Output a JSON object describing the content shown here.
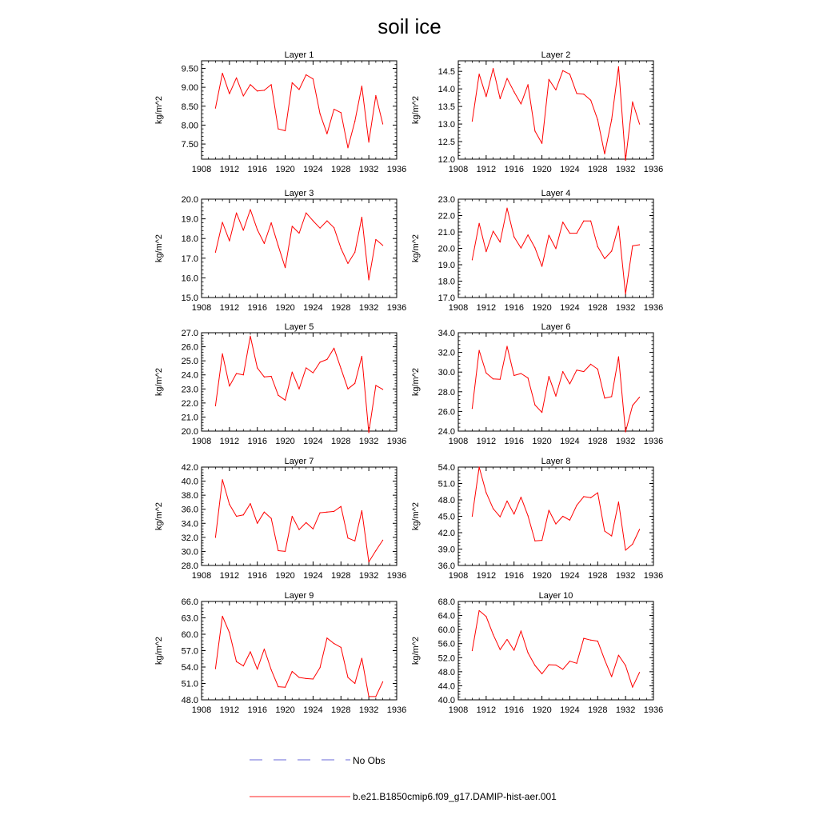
{
  "title": "soil ice",
  "legend": {
    "entries": [
      {
        "label": "No Obs",
        "color": "#6a6ad8",
        "dash": "dashed"
      },
      {
        "label": "b.e21.B1850cmip6.f09_g17.DAMIP-hist-aer.001",
        "color": "#ff2020",
        "dash": "solid"
      }
    ]
  },
  "line_color": "#ff0000",
  "chart_data": [
    {
      "type": "line",
      "title": "Layer 1",
      "ylabel": "kg/m^2",
      "xlim": [
        1908,
        1936
      ],
      "ylim": [
        7.1,
        9.7
      ],
      "xticks": [
        1908,
        1912,
        1916,
        1920,
        1924,
        1928,
        1932,
        1936
      ],
      "yticks": [
        "7.50",
        "8.00",
        "8.50",
        "9.00",
        "9.50"
      ],
      "x": [
        1910,
        1911,
        1912,
        1913,
        1914,
        1915,
        1916,
        1917,
        1918,
        1919,
        1920,
        1921,
        1922,
        1923,
        1924,
        1925,
        1926,
        1927,
        1928,
        1929,
        1930,
        1931,
        1932,
        1933,
        1934
      ],
      "values": [
        8.45,
        9.37,
        8.83,
        9.25,
        8.77,
        9.07,
        8.9,
        8.92,
        9.07,
        7.9,
        7.85,
        9.12,
        8.94,
        9.33,
        9.22,
        8.3,
        7.77,
        8.42,
        8.33,
        7.4,
        8.1,
        9.03,
        7.55,
        8.78,
        8.03
      ]
    },
    {
      "type": "line",
      "title": "Layer 2",
      "ylabel": "kg/m^2",
      "xlim": [
        1908,
        1936
      ],
      "ylim": [
        12.0,
        14.8
      ],
      "xticks": [
        1908,
        1912,
        1916,
        1920,
        1924,
        1928,
        1932,
        1936
      ],
      "yticks": [
        "12.0",
        "12.5",
        "13.0",
        "13.5",
        "14.0",
        "14.5"
      ],
      "x": [
        1910,
        1911,
        1912,
        1913,
        1914,
        1915,
        1916,
        1917,
        1918,
        1919,
        1920,
        1921,
        1922,
        1923,
        1924,
        1925,
        1926,
        1927,
        1928,
        1929,
        1930,
        1931,
        1932,
        1933,
        1934
      ],
      "values": [
        13.08,
        14.42,
        13.78,
        14.58,
        13.72,
        14.3,
        13.92,
        13.57,
        14.12,
        12.8,
        12.45,
        14.27,
        13.97,
        14.52,
        14.42,
        13.87,
        13.85,
        13.68,
        13.12,
        12.15,
        13.12,
        14.63,
        11.97,
        13.63,
        13.0
      ]
    },
    {
      "type": "line",
      "title": "Layer 3",
      "ylabel": "kg/m^2",
      "xlim": [
        1908,
        1936
      ],
      "ylim": [
        15.0,
        20.0
      ],
      "xticks": [
        1908,
        1912,
        1916,
        1920,
        1924,
        1928,
        1932,
        1936
      ],
      "yticks": [
        "15.0",
        "16.0",
        "17.0",
        "18.0",
        "19.0",
        "20.0"
      ],
      "x": [
        1910,
        1911,
        1912,
        1913,
        1914,
        1915,
        1916,
        1917,
        1918,
        1919,
        1920,
        1921,
        1922,
        1923,
        1924,
        1925,
        1926,
        1927,
        1928,
        1929,
        1930,
        1931,
        1932,
        1933,
        1934
      ],
      "values": [
        17.3,
        18.82,
        17.88,
        19.3,
        18.42,
        19.47,
        18.45,
        17.75,
        18.8,
        17.63,
        16.52,
        18.62,
        18.27,
        19.3,
        18.9,
        18.53,
        18.9,
        18.55,
        17.5,
        16.73,
        17.3,
        19.08,
        15.9,
        17.95,
        17.65
      ]
    },
    {
      "type": "line",
      "title": "Layer 4",
      "ylabel": "kg/m^2",
      "xlim": [
        1908,
        1936
      ],
      "ylim": [
        17.0,
        23.0
      ],
      "xticks": [
        1908,
        1912,
        1916,
        1920,
        1924,
        1928,
        1932,
        1936
      ],
      "yticks": [
        "17.0",
        "18.0",
        "19.0",
        "20.0",
        "21.0",
        "22.0",
        "23.0"
      ],
      "x": [
        1910,
        1911,
        1912,
        1913,
        1914,
        1915,
        1916,
        1917,
        1918,
        1919,
        1920,
        1921,
        1922,
        1923,
        1924,
        1925,
        1926,
        1927,
        1928,
        1929,
        1930,
        1931,
        1932,
        1933,
        1934
      ],
      "values": [
        19.3,
        21.52,
        19.8,
        21.05,
        20.38,
        22.45,
        20.7,
        20.02,
        20.82,
        20.03,
        18.9,
        20.8,
        19.98,
        21.6,
        20.92,
        20.92,
        21.67,
        21.67,
        20.1,
        19.37,
        19.83,
        21.35,
        17.22,
        20.15,
        20.22
      ]
    },
    {
      "type": "line",
      "title": "Layer 5",
      "ylabel": "kg/m^2",
      "xlim": [
        1908,
        1936
      ],
      "ylim": [
        20.0,
        27.0
      ],
      "xticks": [
        1908,
        1912,
        1916,
        1920,
        1924,
        1928,
        1932,
        1936
      ],
      "yticks": [
        "20.0",
        "21.0",
        "22.0",
        "23.0",
        "24.0",
        "25.0",
        "26.0",
        "27.0"
      ],
      "x": [
        1910,
        1911,
        1912,
        1913,
        1914,
        1915,
        1916,
        1917,
        1918,
        1919,
        1920,
        1921,
        1922,
        1923,
        1924,
        1925,
        1926,
        1927,
        1928,
        1929,
        1930,
        1931,
        1932,
        1933,
        1934
      ],
      "values": [
        21.8,
        25.5,
        23.2,
        24.1,
        24.0,
        26.75,
        24.5,
        23.85,
        23.9,
        22.55,
        22.2,
        24.2,
        23.0,
        24.5,
        24.15,
        24.9,
        25.1,
        25.9,
        24.45,
        23.0,
        23.4,
        25.32,
        19.9,
        23.25,
        22.97
      ]
    },
    {
      "type": "line",
      "title": "Layer 6",
      "ylabel": "kg/m^2",
      "xlim": [
        1908,
        1936
      ],
      "ylim": [
        24.0,
        34.0
      ],
      "xticks": [
        1908,
        1912,
        1916,
        1920,
        1924,
        1928,
        1932,
        1936
      ],
      "yticks": [
        "24.0",
        "26.0",
        "28.0",
        "30.0",
        "32.0",
        "34.0"
      ],
      "x": [
        1910,
        1911,
        1912,
        1913,
        1914,
        1915,
        1916,
        1917,
        1918,
        1919,
        1920,
        1921,
        1922,
        1923,
        1924,
        1925,
        1926,
        1927,
        1928,
        1929,
        1930,
        1931,
        1932,
        1933,
        1934
      ],
      "values": [
        26.3,
        32.2,
        29.9,
        29.3,
        29.27,
        32.62,
        29.65,
        29.85,
        29.4,
        26.65,
        25.9,
        29.55,
        27.55,
        30.05,
        28.8,
        30.2,
        30.05,
        30.8,
        30.3,
        27.35,
        27.5,
        31.55,
        23.92,
        26.6,
        27.45
      ]
    },
    {
      "type": "line",
      "title": "Layer 7",
      "ylabel": "kg/m^2",
      "xlim": [
        1908,
        1936
      ],
      "ylim": [
        28.0,
        42.0
      ],
      "xticks": [
        1908,
        1912,
        1916,
        1920,
        1924,
        1928,
        1932,
        1936
      ],
      "yticks": [
        "28.0",
        "30.0",
        "32.0",
        "34.0",
        "36.0",
        "38.0",
        "40.0",
        "42.0"
      ],
      "x": [
        1910,
        1911,
        1912,
        1913,
        1914,
        1915,
        1916,
        1917,
        1918,
        1919,
        1920,
        1921,
        1922,
        1923,
        1924,
        1925,
        1926,
        1927,
        1928,
        1929,
        1930,
        1931,
        1932,
        1933,
        1934
      ],
      "values": [
        32.0,
        40.2,
        36.7,
        35.0,
        35.2,
        36.8,
        34.0,
        35.6,
        34.7,
        30.1,
        30.0,
        35.0,
        33.1,
        34.1,
        33.2,
        35.5,
        35.6,
        35.7,
        36.4,
        31.9,
        31.5,
        35.8,
        28.5,
        30.1,
        31.6
      ]
    },
    {
      "type": "line",
      "title": "Layer 8",
      "ylabel": "kg/m^2",
      "xlim": [
        1908,
        1936
      ],
      "ylim": [
        36.0,
        54.0
      ],
      "xticks": [
        1908,
        1912,
        1916,
        1920,
        1924,
        1928,
        1932,
        1936
      ],
      "yticks": [
        "36.0",
        "39.0",
        "42.0",
        "45.0",
        "48.0",
        "51.0",
        "54.0"
      ],
      "x": [
        1910,
        1911,
        1912,
        1913,
        1914,
        1915,
        1916,
        1917,
        1918,
        1919,
        1920,
        1921,
        1922,
        1923,
        1924,
        1925,
        1926,
        1927,
        1928,
        1929,
        1930,
        1931,
        1932,
        1933,
        1934
      ],
      "values": [
        45.0,
        54.0,
        49.3,
        46.4,
        44.9,
        47.8,
        45.4,
        48.5,
        45.1,
        40.5,
        40.6,
        46.1,
        43.6,
        45.0,
        44.3,
        47.0,
        48.6,
        48.4,
        49.3,
        42.3,
        41.4,
        47.6,
        38.8,
        39.9,
        42.6
      ]
    },
    {
      "type": "line",
      "title": "Layer 9",
      "ylabel": "kg/m^2",
      "xlim": [
        1908,
        1936
      ],
      "ylim": [
        48.0,
        66.0
      ],
      "xticks": [
        1908,
        1912,
        1916,
        1920,
        1924,
        1928,
        1932,
        1936
      ],
      "yticks": [
        "48.0",
        "51.0",
        "54.0",
        "57.0",
        "60.0",
        "63.0",
        "66.0"
      ],
      "x": [
        1910,
        1911,
        1912,
        1913,
        1914,
        1915,
        1916,
        1917,
        1918,
        1919,
        1920,
        1921,
        1922,
        1923,
        1924,
        1925,
        1926,
        1927,
        1928,
        1929,
        1930,
        1931,
        1932,
        1933,
        1934
      ],
      "values": [
        53.7,
        63.3,
        60.3,
        55.0,
        54.2,
        56.8,
        53.6,
        57.3,
        53.5,
        50.4,
        50.3,
        53.2,
        52.1,
        51.9,
        51.8,
        53.9,
        59.3,
        58.3,
        57.6,
        52.1,
        51.0,
        55.6,
        48.6,
        48.6,
        51.3
      ]
    },
    {
      "type": "line",
      "title": "Layer 10",
      "ylabel": "kg/m^2",
      "xlim": [
        1908,
        1936
      ],
      "ylim": [
        40.0,
        68.0
      ],
      "xticks": [
        1908,
        1912,
        1916,
        1920,
        1924,
        1928,
        1932,
        1936
      ],
      "yticks": [
        "40.0",
        "44.0",
        "48.0",
        "52.0",
        "56.0",
        "60.0",
        "64.0",
        "68.0"
      ],
      "x": [
        1910,
        1911,
        1912,
        1913,
        1914,
        1915,
        1916,
        1917,
        1918,
        1919,
        1920,
        1921,
        1922,
        1923,
        1924,
        1925,
        1926,
        1927,
        1928,
        1929,
        1930,
        1931,
        1932,
        1933,
        1934
      ],
      "values": [
        54.0,
        65.4,
        63.7,
        58.6,
        54.3,
        57.2,
        54.1,
        59.6,
        53.4,
        49.8,
        47.4,
        50.0,
        49.9,
        48.7,
        51.0,
        50.4,
        57.5,
        57.0,
        56.7,
        51.4,
        46.6,
        52.7,
        49.8,
        43.6,
        47.8
      ]
    }
  ]
}
